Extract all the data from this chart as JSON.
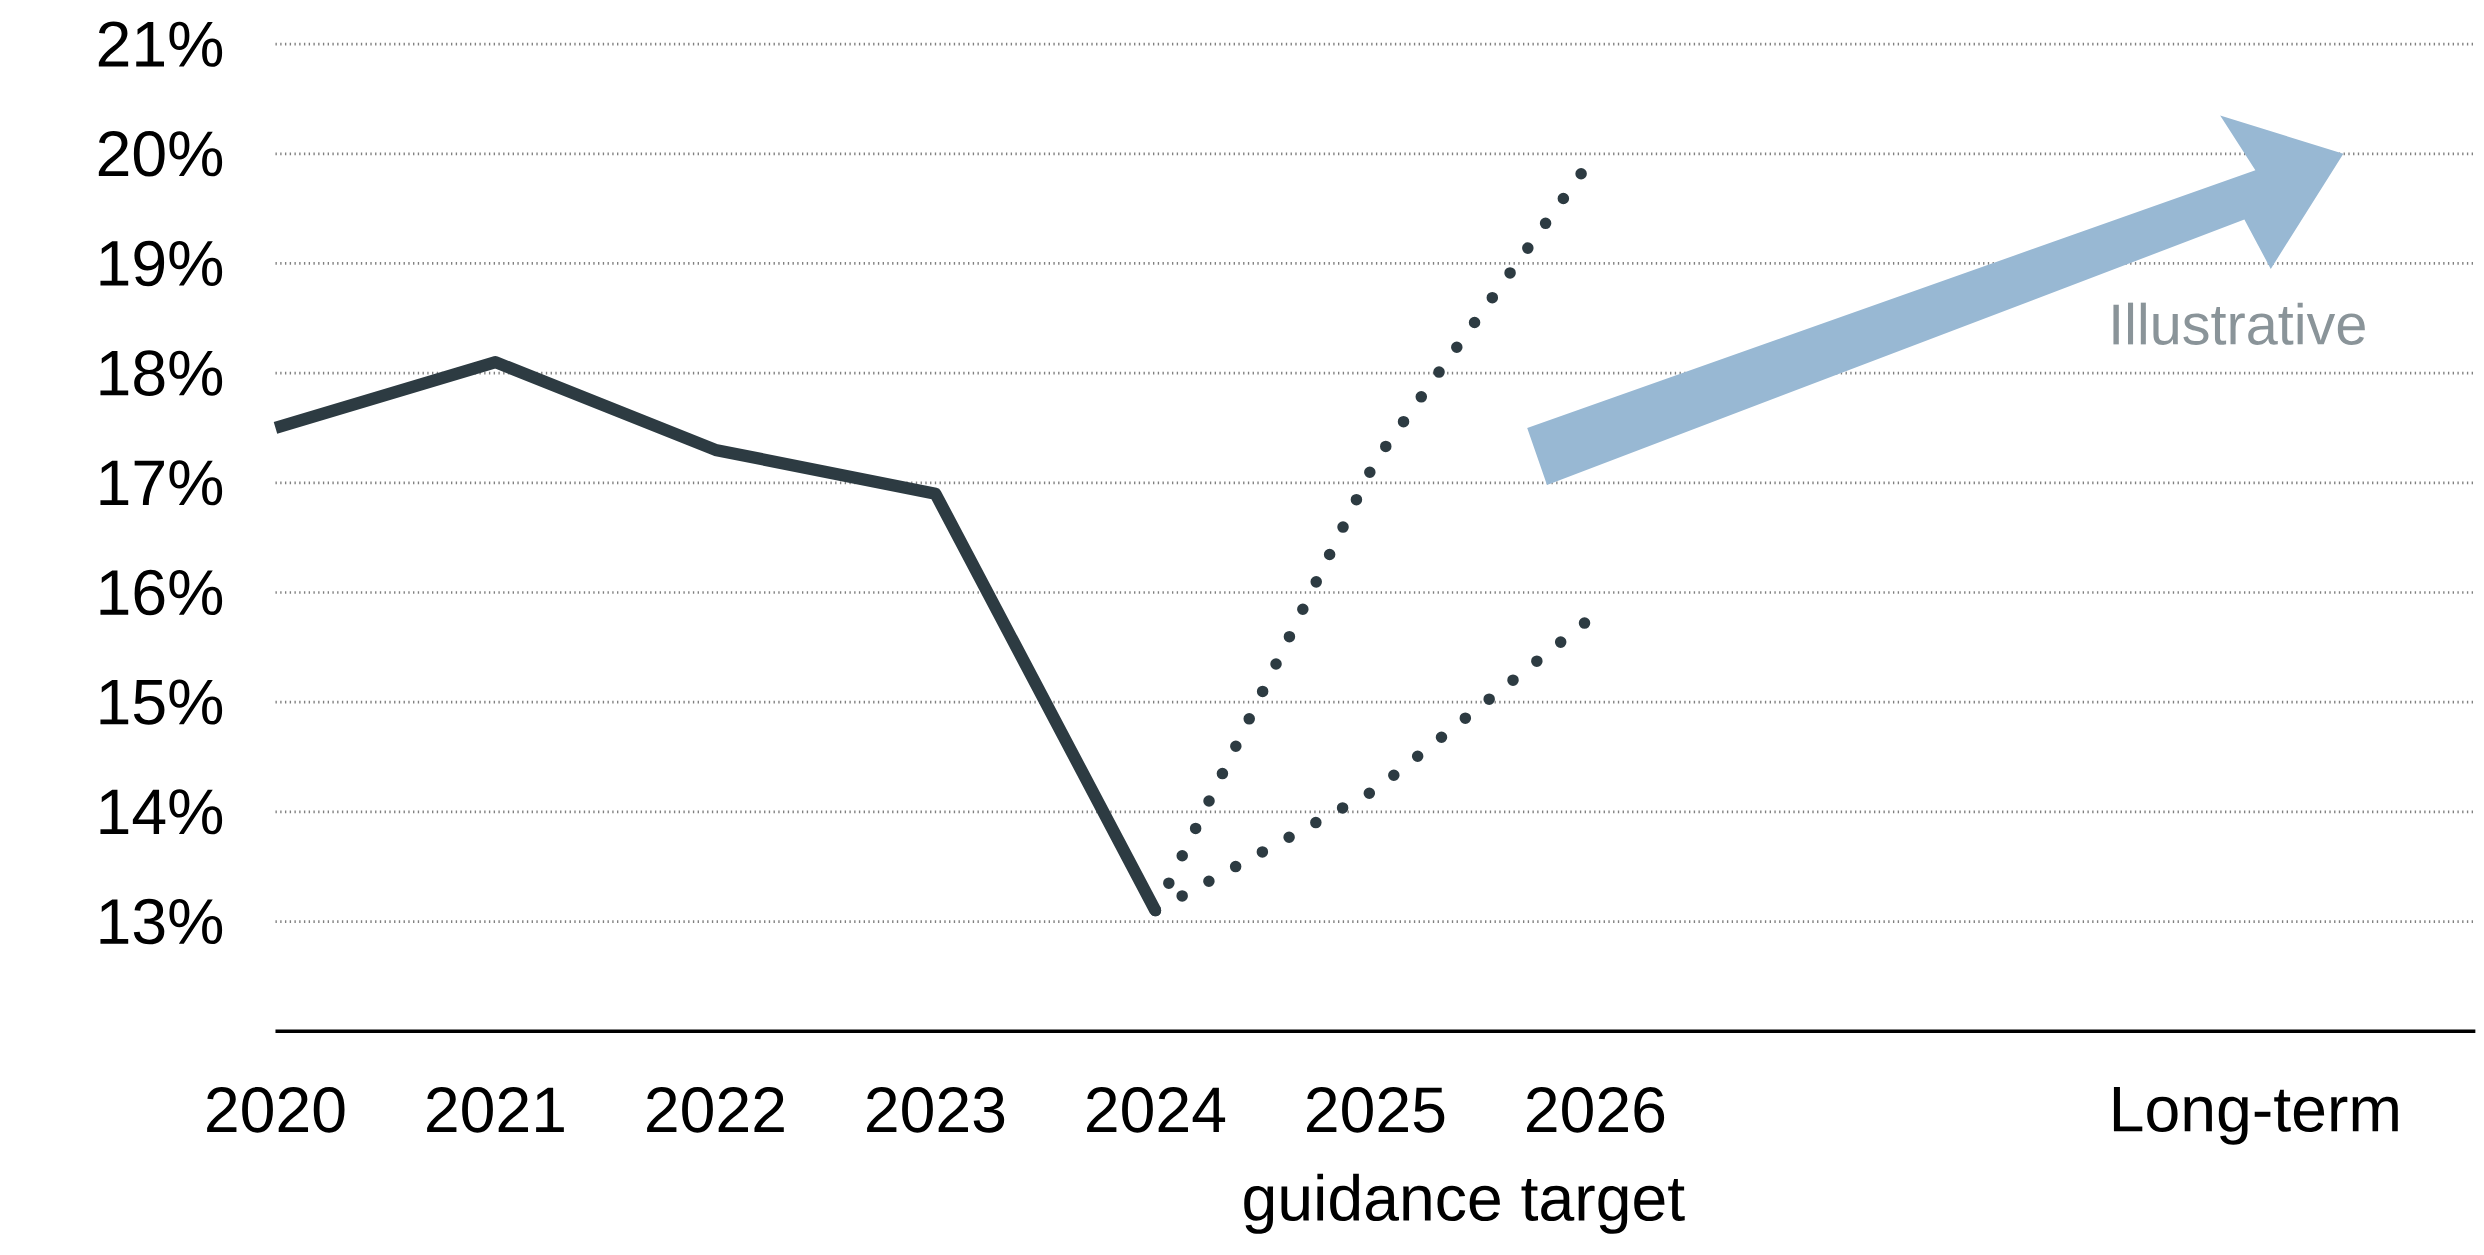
{
  "chart_data": {
    "type": "line",
    "categories": [
      "2020",
      "2021",
      "2022",
      "2023",
      "2024",
      "2025",
      "2026",
      null,
      null,
      "Long-term",
      null
    ],
    "series": [
      {
        "color": "#2d3b42",
        "line_style": "solid",
        "values": [
          17.5,
          18.1,
          17.3,
          16.9,
          13.1,
          null,
          null,
          null,
          null,
          null,
          null
        ]
      },
      {
        "color": "#2d3b42",
        "line_style": "dotted",
        "values": [
          null,
          null,
          null,
          null,
          13.1,
          17.2,
          20.0,
          null,
          null,
          null,
          null
        ]
      },
      {
        "color": "#2d3b42",
        "line_style": "dotted",
        "values": [
          null,
          null,
          null,
          null,
          13.1,
          14.2,
          15.8,
          null,
          null,
          null,
          null
        ]
      }
    ],
    "ylim": [
      12,
      21
    ],
    "yticks": [
      {
        "value": 13,
        "label": "13%"
      },
      {
        "value": 14,
        "label": "14%"
      },
      {
        "value": 15,
        "label": "15%"
      },
      {
        "value": 16,
        "label": "16%"
      },
      {
        "value": 17,
        "label": "17%"
      },
      {
        "value": 18,
        "label": "18%"
      },
      {
        "value": 19,
        "label": "19%"
      },
      {
        "value": 20,
        "label": "20%"
      },
      {
        "value": 21,
        "label": "21%"
      }
    ],
    "grid": "y",
    "marker": "none",
    "annotations": [
      "guidance target",
      "Illustrative"
    ]
  }
}
